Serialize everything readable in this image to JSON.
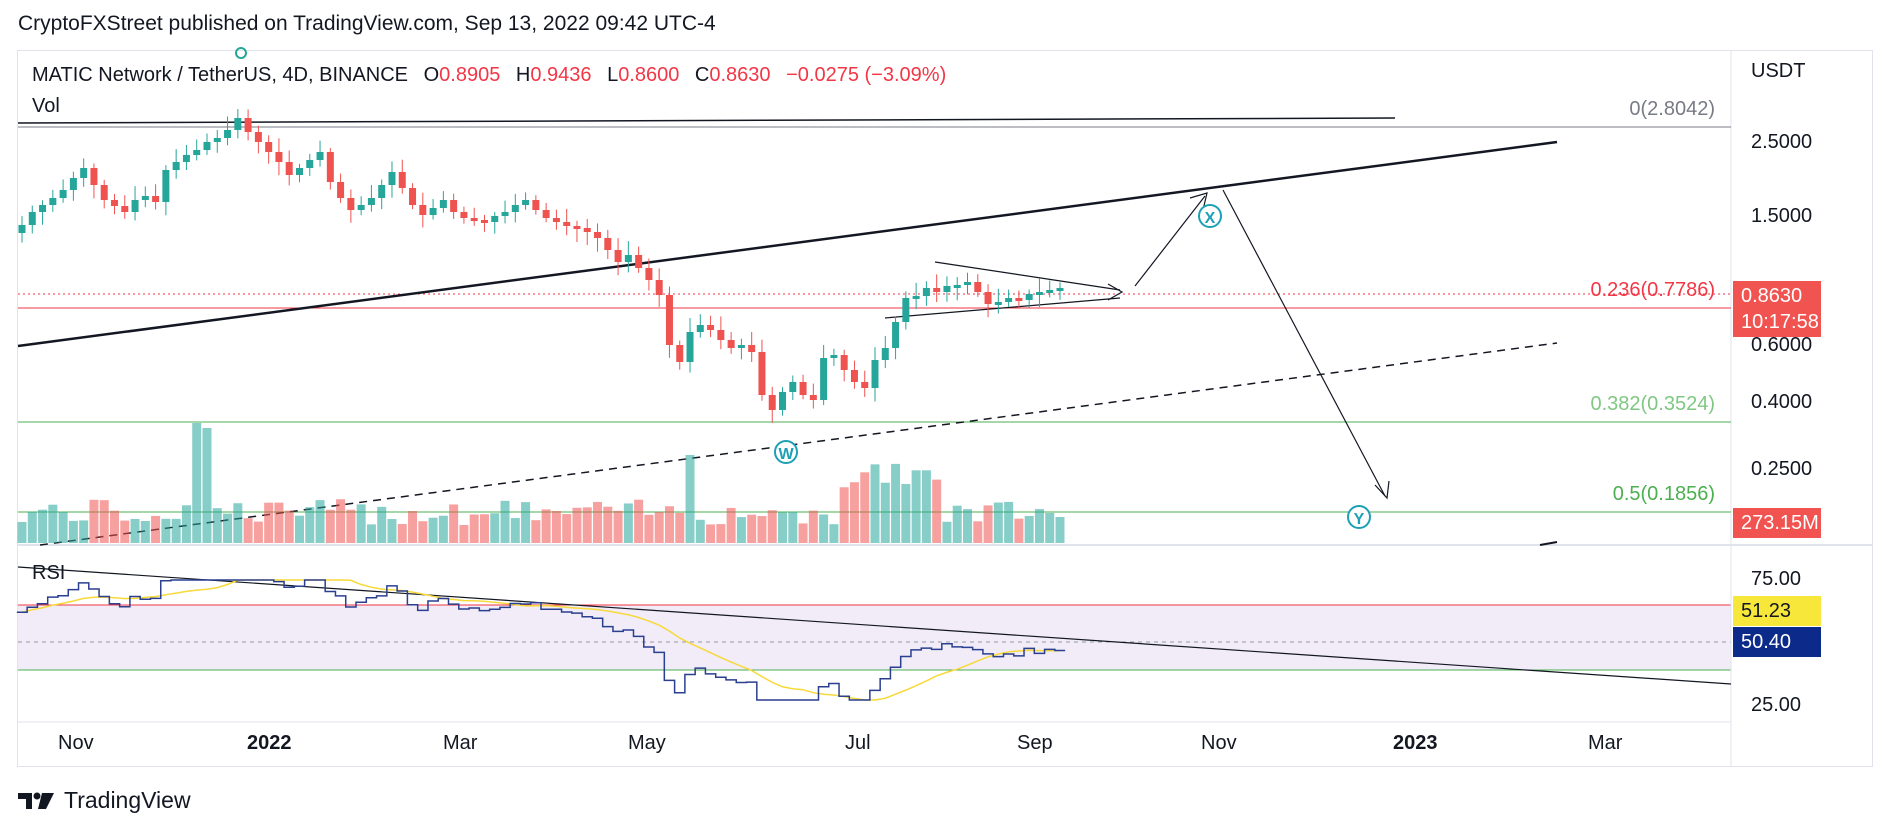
{
  "header": {
    "title": "CryptoFXStreet published on TradingView.com, Sep 13, 2022 09:42 UTC-4"
  },
  "symbol": {
    "name": "MATIC Network / TetherUS, 4D, BINANCE",
    "o_label": "O",
    "o_value": "0.8905",
    "h_label": "H",
    "h_value": "0.9436",
    "l_label": "L",
    "l_value": "0.8600",
    "c_label": "C",
    "c_value": "0.8630",
    "change": "−0.0275 (−3.09%)"
  },
  "panes": {
    "volume": "Vol",
    "rsi": "RSI"
  },
  "price_axis": {
    "currency": "USDT",
    "ticks": [
      "2.5000",
      "1.5000",
      "0.6000",
      "0.4000",
      "0.2500"
    ],
    "rsi_ticks": [
      "75.00",
      "25.00"
    ]
  },
  "tags": {
    "last_price": "0.8630",
    "countdown": "10:17:58",
    "volume": "273.15M",
    "rsi_value": "51.23",
    "rsi_ma": "50.40",
    "last_color": "#f05350",
    "rsi_color": "#f7e73a",
    "rsi_ma_color": "#0b2a8a"
  },
  "fib": {
    "f0": "0(2.8042)",
    "f236": "0.236(0.7786)",
    "f382": "0.382(0.3524)",
    "f5": "0.5(0.1856)"
  },
  "waves": {
    "w": "W",
    "x": "X",
    "y": "Y"
  },
  "time_axis": [
    "Nov",
    "2022",
    "Mar",
    "May",
    "Jul",
    "Sep",
    "Nov",
    "2023",
    "Mar"
  ],
  "footer": {
    "brand": "TradingView"
  },
  "colors": {
    "up": "#26a69a",
    "down": "#ef5350",
    "wave": "#1ca0b5",
    "fib_red": "#f23645",
    "fib_green": "#4caf50"
  }
}
